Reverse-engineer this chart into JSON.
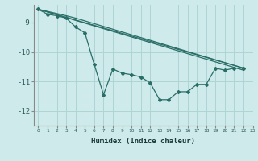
{
  "xlabel": "Humidex (Indice chaleur)",
  "bg_color": "#ceeaea",
  "line_color": "#2a6e68",
  "grid_color": "#aed4d4",
  "xlim": [
    -0.5,
    23
  ],
  "ylim": [
    -12.5,
    -8.4
  ],
  "yticks": [
    -12,
    -11,
    -10,
    -9
  ],
  "xticks": [
    0,
    1,
    2,
    3,
    4,
    5,
    6,
    7,
    8,
    9,
    10,
    11,
    12,
    13,
    14,
    15,
    16,
    17,
    18,
    19,
    20,
    21,
    22,
    23
  ],
  "line_main_x": [
    0,
    1,
    2,
    3,
    4,
    5,
    6,
    7,
    8,
    9,
    10,
    11,
    12,
    13,
    14,
    15,
    16,
    17,
    18,
    19,
    20,
    21,
    22
  ],
  "line_main_y": [
    -8.55,
    -8.72,
    -8.77,
    -8.85,
    -9.15,
    -9.35,
    -10.42,
    -11.45,
    -10.58,
    -10.72,
    -10.77,
    -10.85,
    -11.05,
    -11.62,
    -11.62,
    -11.35,
    -11.35,
    -11.1,
    -11.1,
    -10.55,
    -10.62,
    -10.55,
    -10.55
  ],
  "line2_x": [
    0,
    22
  ],
  "line2_y": [
    -8.55,
    -10.55
  ],
  "line3_x": [
    0,
    3,
    4,
    22
  ],
  "line3_y": [
    -8.55,
    -8.77,
    -8.85,
    -10.55
  ],
  "line4_x": [
    0,
    22
  ],
  "line4_y": [
    -8.55,
    -10.62
  ]
}
